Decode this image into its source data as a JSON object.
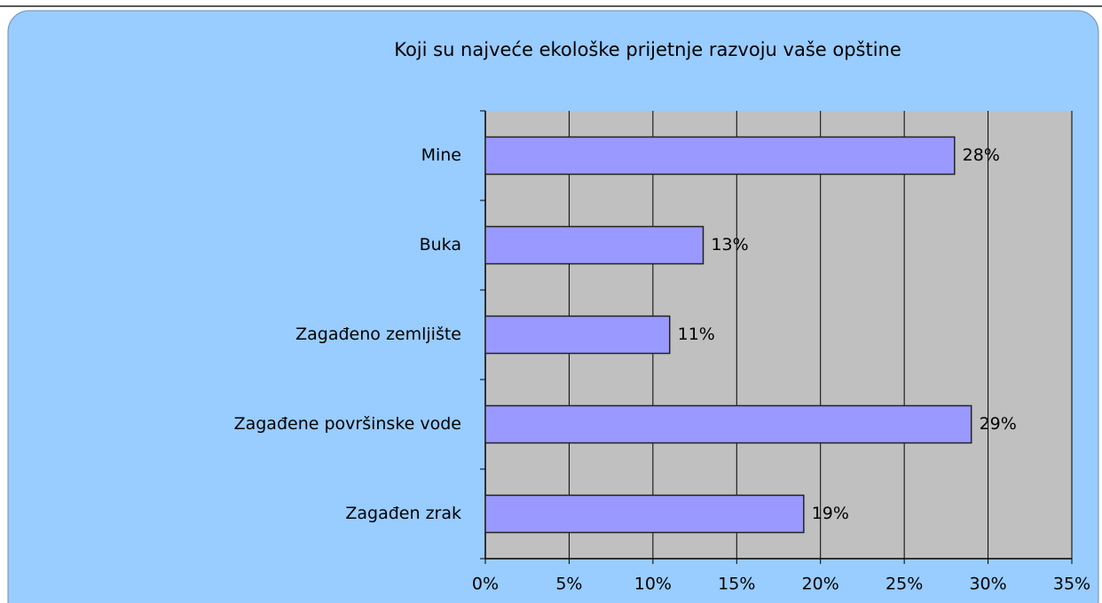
{
  "chart_data": {
    "type": "bar",
    "orientation": "horizontal",
    "title": "Koji su najveće ekološke prijetnje razvoju vaše opštine",
    "categories": [
      "Mine",
      "Buka",
      "Zagađeno zemljište",
      "Zagađene površinske vode",
      "Zagađen zrak"
    ],
    "values": [
      28,
      13,
      11,
      29,
      19
    ],
    "value_labels": [
      "28%",
      "13%",
      "11%",
      "29%",
      "19%"
    ],
    "color": "#9999ff",
    "xlim": [
      0,
      35
    ],
    "xticks": [
      {
        "value": 0,
        "label": "0%"
      },
      {
        "value": 5,
        "label": "5%"
      },
      {
        "value": 10,
        "label": "10%"
      },
      {
        "value": 15,
        "label": "15%"
      },
      {
        "value": 20,
        "label": "20%"
      },
      {
        "value": 25,
        "label": "25%"
      },
      {
        "value": 30,
        "label": "30%"
      },
      {
        "value": 35,
        "label": "35%"
      }
    ],
    "grid": true
  }
}
